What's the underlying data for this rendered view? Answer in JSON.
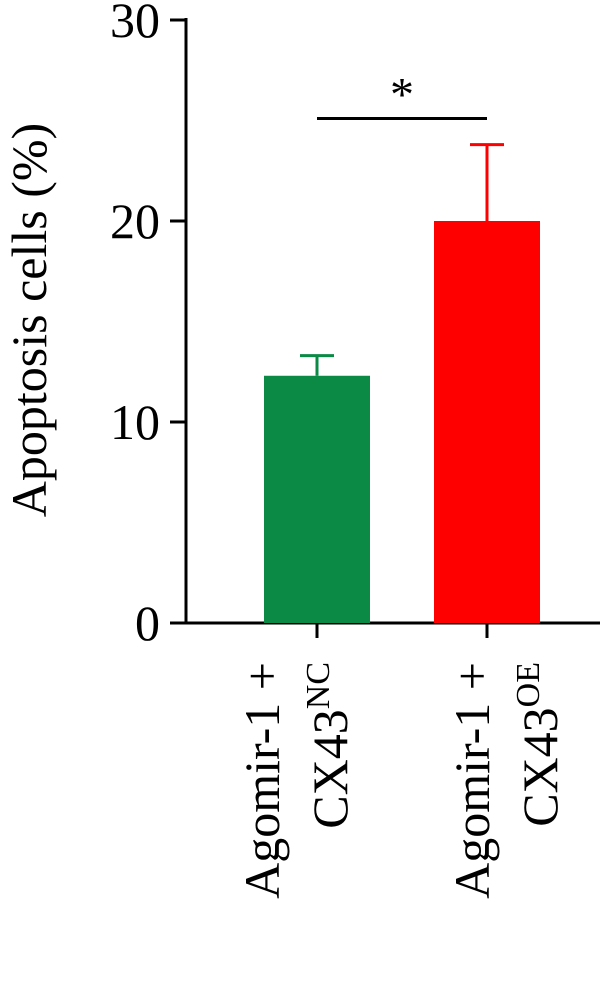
{
  "chart_data": {
    "type": "bar",
    "ylabel": "Apoptosis cells (%)",
    "ylim": [
      0,
      30
    ],
    "yticks": [
      0,
      10,
      20,
      30
    ],
    "categories": [
      {
        "line1": "Agomir-1 +",
        "base": "CX43",
        "sup": "NC"
      },
      {
        "line1": "Agomir-1 +",
        "base": "CX43",
        "sup": "OE"
      }
    ],
    "values": [
      12.3,
      20.0
    ],
    "errors": [
      1.0,
      3.8
    ],
    "colors": [
      "#0b8a46",
      "#ff0000"
    ],
    "significance": {
      "between": [
        0,
        1
      ],
      "label": "*",
      "y": 25.1
    }
  }
}
